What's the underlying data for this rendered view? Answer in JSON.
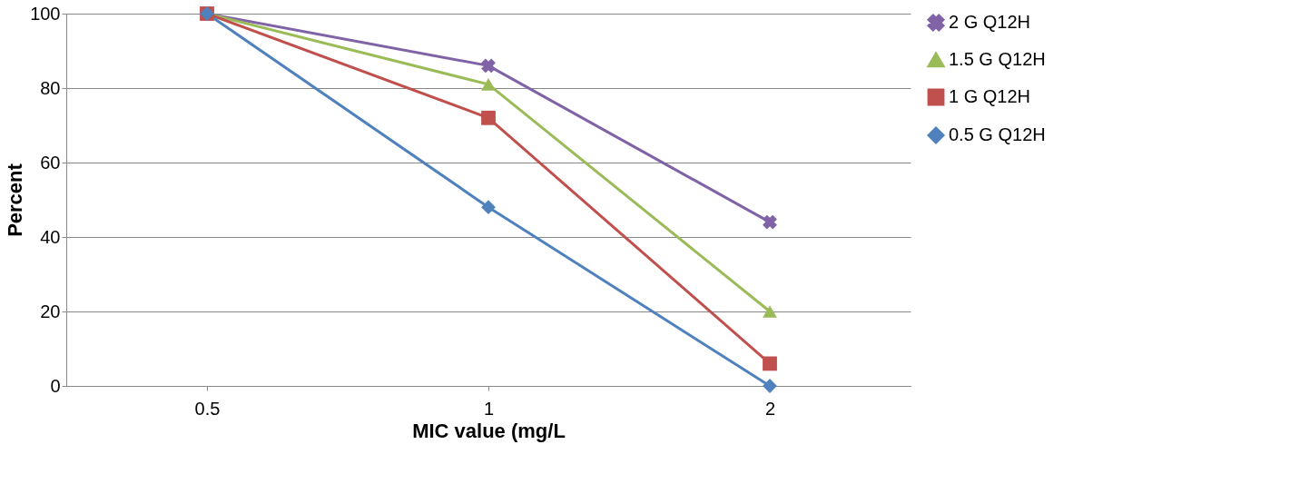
{
  "chart_data": {
    "type": "line",
    "xlabel": "MIC value (mg/L",
    "ylabel": "Percent",
    "categories": [
      "0.5",
      "1",
      "2"
    ],
    "series": [
      {
        "name": "2 G Q12H",
        "color": "#7f63a6",
        "marker": "cross",
        "values": [
          100,
          86,
          44
        ]
      },
      {
        "name": "1.5 G Q12H",
        "color": "#9bbb59",
        "marker": "triangle",
        "values": [
          100,
          81,
          20
        ]
      },
      {
        "name": "1 G Q12H",
        "color": "#c0504d",
        "marker": "square",
        "values": [
          100,
          72,
          6
        ]
      },
      {
        "name": "0.5 G Q12H",
        "color": "#4f81bd",
        "marker": "diamond",
        "values": [
          100,
          48,
          0
        ]
      }
    ],
    "ylim": [
      0,
      100
    ],
    "yticks": [
      0,
      20,
      40,
      60,
      80,
      100
    ],
    "grid": "y",
    "legend": "right",
    "line_style": "solid"
  }
}
